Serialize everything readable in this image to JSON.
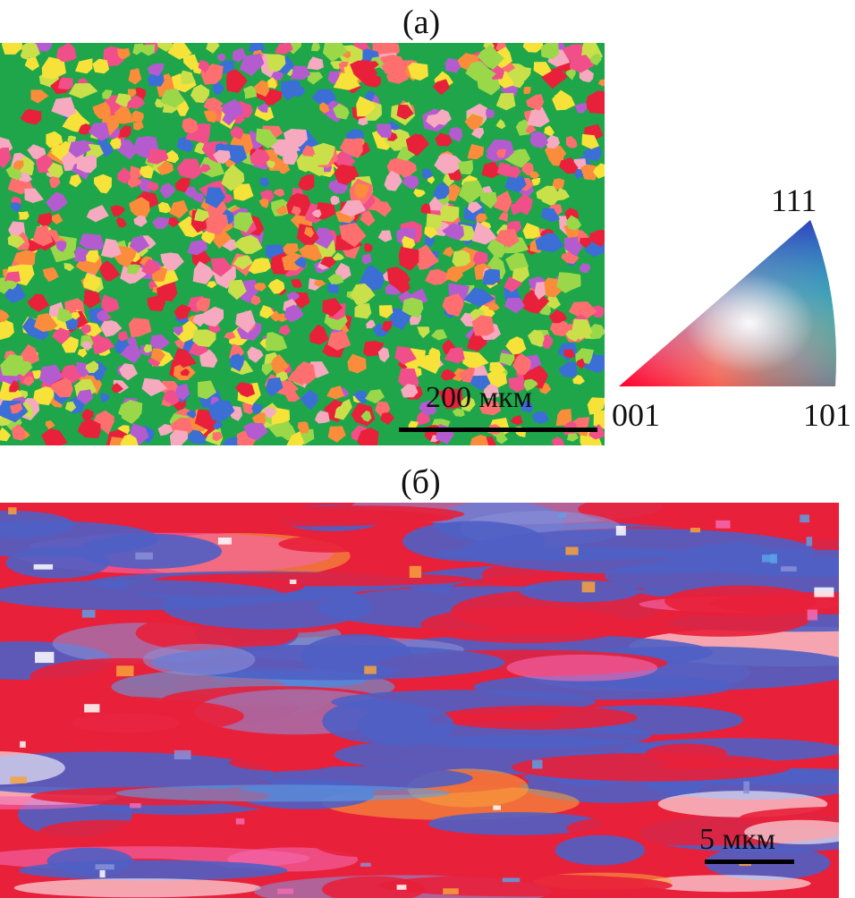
{
  "figure": {
    "panel_a": {
      "label": "(a)",
      "scale_bar_text": "200 мкм",
      "dominant_color": "#1fa64a",
      "grain_colors": [
        "#e8203a",
        "#f04f8a",
        "#fa8c3c",
        "#f7e23a",
        "#b55bd0",
        "#3b6fd6",
        "#f7a9c0",
        "#9ad84a",
        "#ff6f6f",
        "#c9e04a"
      ]
    },
    "panel_b": {
      "label": "(б)",
      "scale_bar_text": "5 мкм",
      "dominant_colors": [
        "#e8203a",
        "#4f5fc4"
      ],
      "accent_colors": [
        "#8a8fd8",
        "#f46bb0",
        "#f7a23c",
        "#ffffff",
        "#5aa0e8"
      ]
    },
    "ipf_key": {
      "labels": {
        "top": "111",
        "left": "001",
        "right": "101"
      },
      "corner_colors": {
        "001": "#ff0000",
        "101": "#00c040",
        "111": "#3040c0"
      }
    }
  }
}
